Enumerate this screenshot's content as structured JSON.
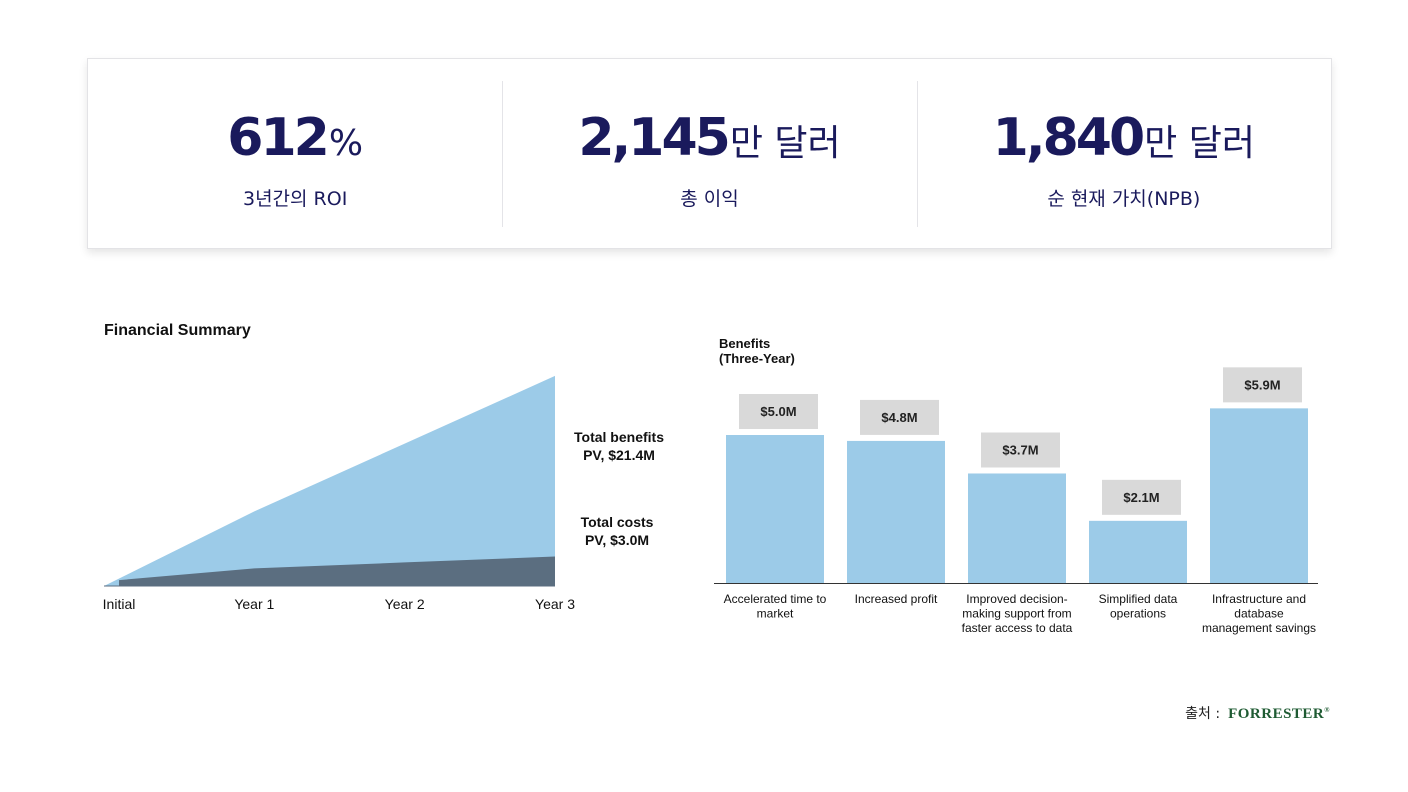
{
  "stats": [
    {
      "value": "612",
      "unit": "%",
      "label": "3년간의 ROI"
    },
    {
      "value": "2,145",
      "unit": "만 달러",
      "label": "총 이익"
    },
    {
      "value": "1,840",
      "unit": "만 달러",
      "label": "순 현재 가치(NPB)"
    }
  ],
  "chart_data": [
    {
      "type": "area",
      "title": "Financial Summary",
      "x": [
        "Initial",
        "Year 1",
        "Year 2",
        "Year 3"
      ],
      "series": [
        {
          "name": "Total benefits PV, $21.4M",
          "values": [
            0,
            7.6,
            14.5,
            21.4
          ],
          "color": "#9ccbe8"
        },
        {
          "name": "Total costs PV, $3.0M",
          "values": [
            0.6,
            1.8,
            2.4,
            3.0
          ],
          "color": "#5b6e80"
        }
      ],
      "annotations": [
        {
          "line1": "Total benefits",
          "line2": "PV, $21.4M"
        },
        {
          "line1": "Total costs",
          "line2": "PV, $3.0M"
        }
      ],
      "ylim": [
        0,
        22
      ],
      "grid": false
    },
    {
      "type": "bar",
      "title": "Benefits",
      "subtitle": "(Three-Year)",
      "categories": [
        [
          "Accelerated time to",
          "market"
        ],
        [
          "Increased profit"
        ],
        [
          "Improved decision-",
          "making support from",
          "faster access to data"
        ],
        [
          "Simplified data",
          "operations"
        ],
        [
          "Infrastructure and",
          "database",
          "management savings"
        ]
      ],
      "values": [
        5.0,
        4.8,
        3.7,
        2.1,
        5.9
      ],
      "labels": [
        "$5.0M",
        "$4.8M",
        "$3.7M",
        "$2.1M",
        "$5.9M"
      ],
      "ylim": [
        0,
        6
      ],
      "bar_color": "#9ccbe8",
      "label_bg": "#d9d9d9",
      "grid": false
    }
  ],
  "source": {
    "label": "출처 :",
    "logo": "FORRESTER",
    "mark": "®"
  }
}
